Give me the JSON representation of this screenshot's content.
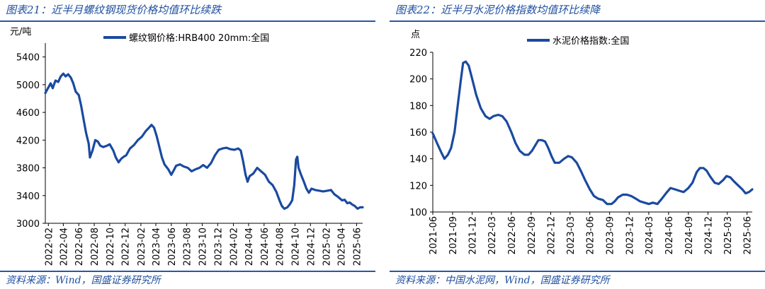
{
  "charts": {
    "left": {
      "figure_title": "图表21：近半月螺纹钢现货价格均值环比续跌",
      "source": "资料来源：Wind，国盛证券研究所"
    },
    "right": {
      "figure_title": "图表22：近半月水泥价格指数均值环比续降",
      "source": "资料来源：中国水泥网，Wind，国盛证券研究所"
    }
  },
  "colors": {
    "line": "#1a4aa0",
    "title": "#1f4fa0",
    "rule": "#2a56a8"
  },
  "chart_data": [
    {
      "type": "line",
      "title": "",
      "ylabel": "元/吨",
      "ylim": [
        3000,
        5600
      ],
      "yticks": [
        3000,
        3400,
        3800,
        4200,
        4600,
        5000,
        5400
      ],
      "xlim": [
        "2022-01-20",
        "2025-06-25"
      ],
      "xtick_labels": [
        "2022-02",
        "2022-04",
        "2022-06",
        "2022-08",
        "2022-10",
        "2022-12",
        "2023-02",
        "2023-04",
        "2023-06",
        "2023-08",
        "2023-10",
        "2023-12",
        "2024-02",
        "2024-04",
        "2024-06",
        "2024-08",
        "2024-10",
        "2024-12",
        "2025-02",
        "2025-04",
        "2025-06"
      ],
      "series": [
        {
          "name": "螺纹钢价格:HRB400 20mm:全国",
          "points": [
            [
              "2022-01-20",
              4880
            ],
            [
              "2022-02-01",
              4960
            ],
            [
              "2022-02-10",
              5020
            ],
            [
              "2022-02-18",
              4950
            ],
            [
              "2022-03-01",
              5060
            ],
            [
              "2022-03-12",
              5040
            ],
            [
              "2022-03-22",
              5120
            ],
            [
              "2022-04-01",
              5160
            ],
            [
              "2022-04-10",
              5120
            ],
            [
              "2022-04-20",
              5150
            ],
            [
              "2022-05-01",
              5100
            ],
            [
              "2022-05-10",
              5020
            ],
            [
              "2022-05-20",
              4900
            ],
            [
              "2022-06-01",
              4850
            ],
            [
              "2022-06-10",
              4700
            ],
            [
              "2022-06-20",
              4500
            ],
            [
              "2022-06-30",
              4300
            ],
            [
              "2022-07-10",
              4150
            ],
            [
              "2022-07-15",
              3950
            ],
            [
              "2022-07-25",
              4050
            ],
            [
              "2022-08-05",
              4200
            ],
            [
              "2022-08-15",
              4180
            ],
            [
              "2022-08-25",
              4120
            ],
            [
              "2022-09-05",
              4100
            ],
            [
              "2022-09-20",
              4120
            ],
            [
              "2022-10-01",
              4140
            ],
            [
              "2022-10-15",
              4050
            ],
            [
              "2022-10-25",
              3950
            ],
            [
              "2022-11-05",
              3880
            ],
            [
              "2022-11-15",
              3930
            ],
            [
              "2022-11-25",
              3960
            ],
            [
              "2022-12-05",
              3980
            ],
            [
              "2022-12-20",
              4080
            ],
            [
              "2023-01-05",
              4130
            ],
            [
              "2023-01-20",
              4200
            ],
            [
              "2023-02-05",
              4250
            ],
            [
              "2023-02-20",
              4330
            ],
            [
              "2023-03-05",
              4380
            ],
            [
              "2023-03-15",
              4420
            ],
            [
              "2023-03-25",
              4380
            ],
            [
              "2023-04-05",
              4250
            ],
            [
              "2023-04-15",
              4100
            ],
            [
              "2023-04-25",
              3950
            ],
            [
              "2023-05-05",
              3850
            ],
            [
              "2023-05-20",
              3780
            ],
            [
              "2023-06-01",
              3700
            ],
            [
              "2023-06-10",
              3760
            ],
            [
              "2023-06-20",
              3830
            ],
            [
              "2023-07-05",
              3850
            ],
            [
              "2023-07-20",
              3820
            ],
            [
              "2023-08-05",
              3800
            ],
            [
              "2023-08-20",
              3750
            ],
            [
              "2023-09-05",
              3780
            ],
            [
              "2023-09-20",
              3800
            ],
            [
              "2023-10-05",
              3840
            ],
            [
              "2023-10-20",
              3800
            ],
            [
              "2023-11-05",
              3870
            ],
            [
              "2023-11-20",
              3980
            ],
            [
              "2023-12-05",
              4060
            ],
            [
              "2023-12-20",
              4080
            ],
            [
              "2024-01-05",
              4090
            ],
            [
              "2024-01-20",
              4070
            ],
            [
              "2024-02-05",
              4060
            ],
            [
              "2024-02-20",
              4080
            ],
            [
              "2024-03-01",
              4050
            ],
            [
              "2024-03-10",
              3900
            ],
            [
              "2024-03-20",
              3700
            ],
            [
              "2024-03-28",
              3600
            ],
            [
              "2024-04-05",
              3680
            ],
            [
              "2024-04-20",
              3720
            ],
            [
              "2024-05-05",
              3800
            ],
            [
              "2024-05-20",
              3750
            ],
            [
              "2024-06-05",
              3700
            ],
            [
              "2024-06-20",
              3600
            ],
            [
              "2024-07-05",
              3550
            ],
            [
              "2024-07-20",
              3450
            ],
            [
              "2024-08-01",
              3330
            ],
            [
              "2024-08-10",
              3250
            ],
            [
              "2024-08-20",
              3210
            ],
            [
              "2024-09-01",
              3230
            ],
            [
              "2024-09-10",
              3270
            ],
            [
              "2024-09-20",
              3330
            ],
            [
              "2024-09-28",
              3550
            ],
            [
              "2024-10-05",
              3920
            ],
            [
              "2024-10-10",
              3960
            ],
            [
              "2024-10-15",
              3800
            ],
            [
              "2024-10-25",
              3700
            ],
            [
              "2024-11-05",
              3600
            ],
            [
              "2024-11-15",
              3500
            ],
            [
              "2024-11-25",
              3440
            ],
            [
              "2024-12-05",
              3500
            ],
            [
              "2024-12-20",
              3480
            ],
            [
              "2025-01-05",
              3470
            ],
            [
              "2025-01-20",
              3460
            ],
            [
              "2025-02-05",
              3470
            ],
            [
              "2025-02-20",
              3480
            ],
            [
              "2025-03-05",
              3420
            ],
            [
              "2025-03-20",
              3380
            ],
            [
              "2025-04-05",
              3330
            ],
            [
              "2025-04-15",
              3340
            ],
            [
              "2025-04-25",
              3290
            ],
            [
              "2025-05-05",
              3300
            ],
            [
              "2025-05-15",
              3270
            ],
            [
              "2025-05-25",
              3250
            ],
            [
              "2025-06-05",
              3210
            ],
            [
              "2025-06-15",
              3230
            ],
            [
              "2025-06-25",
              3230
            ]
          ]
        }
      ]
    },
    {
      "type": "line",
      "title": "",
      "ylabel": "点",
      "ylim": [
        100,
        220
      ],
      "yticks": [
        100,
        120,
        140,
        160,
        180,
        200,
        220
      ],
      "xlim": [
        "2021-06-01",
        "2025-06-25"
      ],
      "xtick_labels": [
        "2021-06",
        "2021-09",
        "2021-12",
        "2022-03",
        "2022-06",
        "2022-09",
        "2022-12",
        "2023-03",
        "2023-06",
        "2023-09",
        "2023-12",
        "2024-03",
        "2024-06",
        "2024-09",
        "2024-12",
        "2025-03",
        "2025-06"
      ],
      "series": [
        {
          "name": "水泥价格指数:全国",
          "points": [
            [
              "2021-06-01",
              159
            ],
            [
              "2021-06-20",
              152
            ],
            [
              "2021-07-10",
              145
            ],
            [
              "2021-07-25",
              140
            ],
            [
              "2021-08-10",
              143
            ],
            [
              "2021-08-25",
              148
            ],
            [
              "2021-09-10",
              160
            ],
            [
              "2021-09-25",
              180
            ],
            [
              "2021-10-10",
              200
            ],
            [
              "2021-10-20",
              212
            ],
            [
              "2021-11-01",
              213
            ],
            [
              "2021-11-15",
              210
            ],
            [
              "2021-12-01",
              200
            ],
            [
              "2021-12-20",
              188
            ],
            [
              "2022-01-10",
              178
            ],
            [
              "2022-02-01",
              172
            ],
            [
              "2022-02-20",
              170
            ],
            [
              "2022-03-10",
              172
            ],
            [
              "2022-04-01",
              173
            ],
            [
              "2022-04-20",
              172
            ],
            [
              "2022-05-10",
              168
            ],
            [
              "2022-06-01",
              160
            ],
            [
              "2022-06-20",
              152
            ],
            [
              "2022-07-10",
              146
            ],
            [
              "2022-08-01",
              143
            ],
            [
              "2022-08-20",
              143
            ],
            [
              "2022-09-05",
              146
            ],
            [
              "2022-09-20",
              150
            ],
            [
              "2022-10-05",
              154
            ],
            [
              "2022-10-20",
              154
            ],
            [
              "2022-11-05",
              153
            ],
            [
              "2022-11-20",
              148
            ],
            [
              "2022-12-05",
              142
            ],
            [
              "2022-12-20",
              137
            ],
            [
              "2023-01-10",
              137
            ],
            [
              "2023-02-01",
              140
            ],
            [
              "2023-02-20",
              142
            ],
            [
              "2023-03-10",
              141
            ],
            [
              "2023-04-01",
              137
            ],
            [
              "2023-04-20",
              131
            ],
            [
              "2023-05-10",
              124
            ],
            [
              "2023-06-01",
              117
            ],
            [
              "2023-06-20",
              112
            ],
            [
              "2023-07-10",
              110
            ],
            [
              "2023-08-01",
              109
            ],
            [
              "2023-08-20",
              106
            ],
            [
              "2023-09-10",
              106
            ],
            [
              "2023-09-25",
              108
            ],
            [
              "2023-10-10",
              111
            ],
            [
              "2023-11-01",
              113
            ],
            [
              "2023-11-20",
              113
            ],
            [
              "2023-12-10",
              112
            ],
            [
              "2024-01-01",
              110
            ],
            [
              "2024-01-20",
              108
            ],
            [
              "2024-02-10",
              107
            ],
            [
              "2024-03-01",
              106
            ],
            [
              "2024-03-20",
              107
            ],
            [
              "2024-04-10",
              106
            ],
            [
              "2024-05-01",
              110
            ],
            [
              "2024-05-20",
              114
            ],
            [
              "2024-06-10",
              118
            ],
            [
              "2024-07-01",
              117
            ],
            [
              "2024-07-20",
              116
            ],
            [
              "2024-08-10",
              115
            ],
            [
              "2024-09-01",
              118
            ],
            [
              "2024-09-20",
              122
            ],
            [
              "2024-10-10",
              130
            ],
            [
              "2024-10-25",
              133
            ],
            [
              "2024-11-10",
              133
            ],
            [
              "2024-11-25",
              131
            ],
            [
              "2024-12-10",
              127
            ],
            [
              "2025-01-01",
              122
            ],
            [
              "2025-01-20",
              121
            ],
            [
              "2025-02-10",
              124
            ],
            [
              "2025-02-25",
              127
            ],
            [
              "2025-03-15",
              126
            ],
            [
              "2025-04-01",
              123
            ],
            [
              "2025-04-20",
              120
            ],
            [
              "2025-05-10",
              117
            ],
            [
              "2025-05-25",
              114
            ],
            [
              "2025-06-10",
              115
            ],
            [
              "2025-06-25",
              117
            ]
          ]
        }
      ]
    }
  ]
}
